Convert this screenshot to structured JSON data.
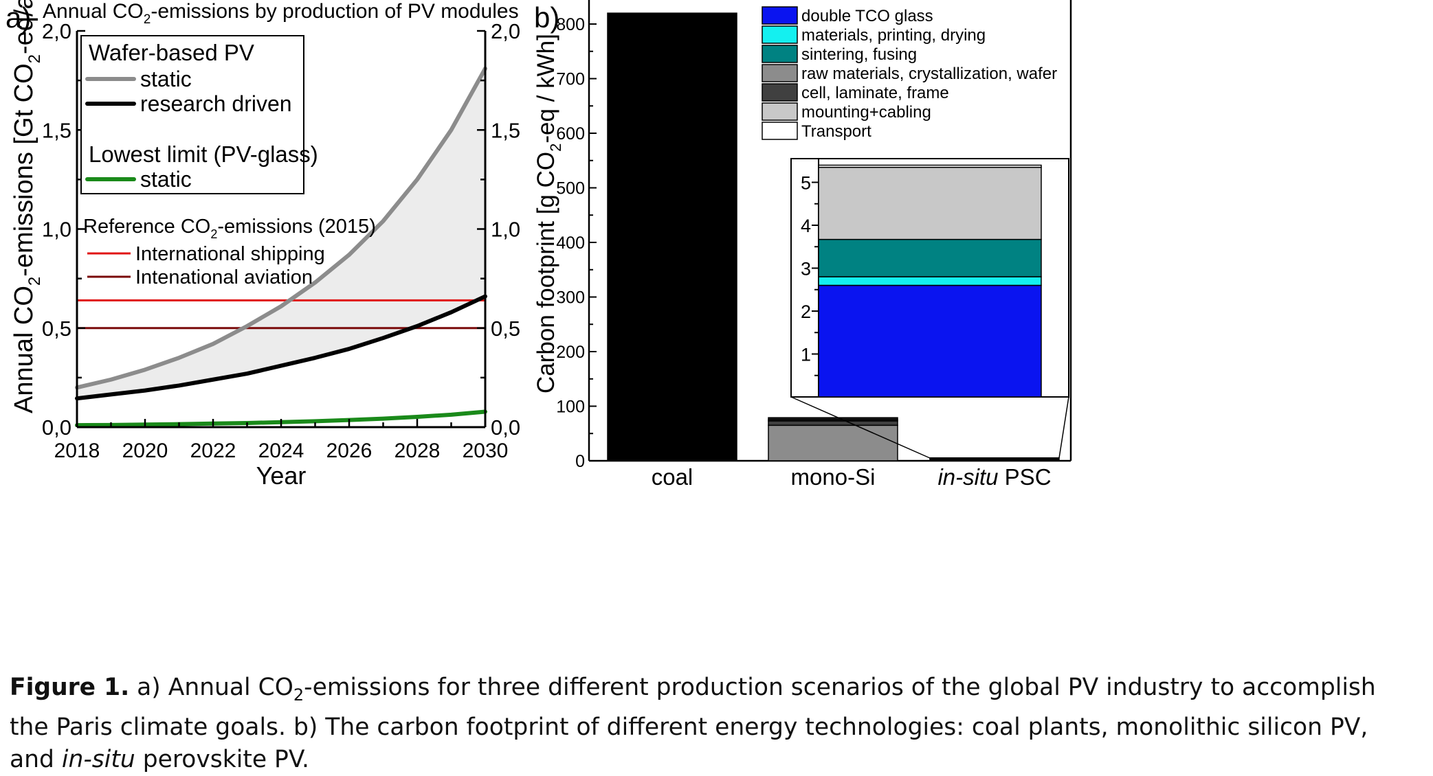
{
  "chart_data": [
    {
      "panel": "a)",
      "type": "line",
      "title_parts": [
        "Annual CO",
        "2",
        "-emissions by production of PV modules"
      ],
      "xlabel": "Year",
      "ylabel_parts": [
        "Annual CO",
        "2",
        "-emissions [Gt CO",
        "2",
        "-eq/a]"
      ],
      "xlim": [
        2018,
        2030
      ],
      "ylim": [
        0,
        2.0
      ],
      "xticks": [
        2018,
        2020,
        2022,
        2024,
        2026,
        2028,
        2030
      ],
      "yticks": [
        {
          "v": 0.0,
          "label": "0,0"
        },
        {
          "v": 0.5,
          "label": "0,5"
        },
        {
          "v": 1.0,
          "label": "1,0"
        },
        {
          "v": 1.5,
          "label": "1,5"
        },
        {
          "v": 2.0,
          "label": "2,0"
        }
      ],
      "x": [
        2018,
        2019,
        2020,
        2021,
        2022,
        2023,
        2024,
        2025,
        2026,
        2027,
        2028,
        2029,
        2030
      ],
      "series": [
        {
          "group": "Wafer-based PV",
          "name": "static",
          "color": "#8c8c8c",
          "values": [
            0.2,
            0.24,
            0.29,
            0.35,
            0.42,
            0.51,
            0.61,
            0.73,
            0.87,
            1.04,
            1.25,
            1.5,
            1.81
          ]
        },
        {
          "group": "Wafer-based PV",
          "name": "research driven",
          "color": "#000000",
          "values": [
            0.145,
            0.165,
            0.185,
            0.21,
            0.24,
            0.27,
            0.31,
            0.35,
            0.395,
            0.45,
            0.51,
            0.58,
            0.66
          ]
        },
        {
          "group": "Lowest limit (PV-glass)",
          "name": "static",
          "color": "#1a8a1a",
          "values": [
            0.01,
            0.011,
            0.013,
            0.015,
            0.018,
            0.021,
            0.025,
            0.03,
            0.036,
            0.043,
            0.052,
            0.063,
            0.078
          ]
        }
      ],
      "reference_lines": [
        {
          "name": "International shipping",
          "value": 0.64,
          "color": "#e01414"
        },
        {
          "name": "Intenational aviation",
          "value": 0.5,
          "color": "#7a0a0a"
        }
      ],
      "legend": {
        "wafer_title": "Wafer-based PV",
        "wafer_static": "static",
        "wafer_research": "research driven",
        "lowest_title": "Lowest limit (PV-glass)",
        "lowest_static": "static",
        "reference_title_parts": [
          "Reference CO",
          "2",
          "-emissions (2015)"
        ],
        "shipping": "International shipping",
        "aviation": "Intenational aviation"
      },
      "fill_color": "#ececec"
    },
    {
      "panel": "b)",
      "type": "bar",
      "ylabel_parts": [
        "Carbon footprint [g CO",
        "2",
        "-eq / kWh]"
      ],
      "ylim": [
        0,
        800
      ],
      "yticks": [
        0,
        100,
        200,
        300,
        400,
        500,
        600,
        700,
        800
      ],
      "categories": [
        {
          "label": "coal",
          "italic": "",
          "rest": "coal"
        },
        {
          "label": "mono-Si",
          "italic": "",
          "rest": "mono-Si"
        },
        {
          "label": "in-situ PSC",
          "italic": "in-situ",
          "rest": " PSC"
        }
      ],
      "bars": [
        {
          "category": "coal",
          "segments": [
            {
              "name": "coal",
              "value": 820,
              "color": "#000000"
            }
          ]
        },
        {
          "category": "mono-Si",
          "segments": [
            {
              "name": "raw materials, crystallization, wafer",
              "value": 65,
              "color": "#8c8c8c"
            },
            {
              "name": "cell, laminate, frame",
              "value": 8,
              "color": "#404040"
            },
            {
              "name": "mounting+cabling",
              "value": 2,
              "color": "#c8c8c8"
            },
            {
              "name": "Transport",
              "value": 4,
              "color": "#1a1a1a"
            }
          ]
        },
        {
          "category": "in-situ PSC",
          "segments": [
            {
              "name": "total",
              "value": 5.4,
              "color": "#000000"
            }
          ]
        }
      ],
      "legend": [
        {
          "name": "double TCO glass",
          "color": "#0a14f0"
        },
        {
          "name": "materials, printing, drying",
          "color": "#14f0f0"
        },
        {
          "name": "sintering, fusing",
          "color": "#008282"
        },
        {
          "name": "raw materials, crystallization, wafer",
          "color": "#8c8c8c"
        },
        {
          "name": "cell, laminate, frame",
          "color": "#404040"
        },
        {
          "name": "mounting+cabling",
          "color": "#c8c8c8"
        },
        {
          "name": "Transport",
          "color": "#ffffff"
        }
      ],
      "inset": {
        "ylim": [
          0,
          5.5
        ],
        "yticks": [
          1,
          2,
          3,
          4,
          5
        ],
        "segments": [
          {
            "name": "double TCO glass",
            "value": 2.6,
            "color": "#0a14f0"
          },
          {
            "name": "materials, printing, drying",
            "value": 0.2,
            "color": "#14f0f0"
          },
          {
            "name": "sintering, fusing",
            "value": 0.87,
            "color": "#008282"
          },
          {
            "name": "mounting+cabling",
            "value": 1.68,
            "color": "#c8c8c8"
          },
          {
            "name": "Transport",
            "value": 0.05,
            "color": "#ffffff"
          }
        ]
      }
    }
  ],
  "caption": {
    "label": "Figure 1.",
    "line1_a": " a) Annual CO",
    "line1_sub": "2",
    "line1_b": "-emissions for three different production scenarios of the global PV industry to accomplish",
    "line2": "the Paris climate goals. b) The carbon footprint of different energy technologies: coal plants, monolithic silicon PV,",
    "line3_a": "and ",
    "line3_italic": "in-situ",
    "line3_b": " perovskite PV."
  }
}
